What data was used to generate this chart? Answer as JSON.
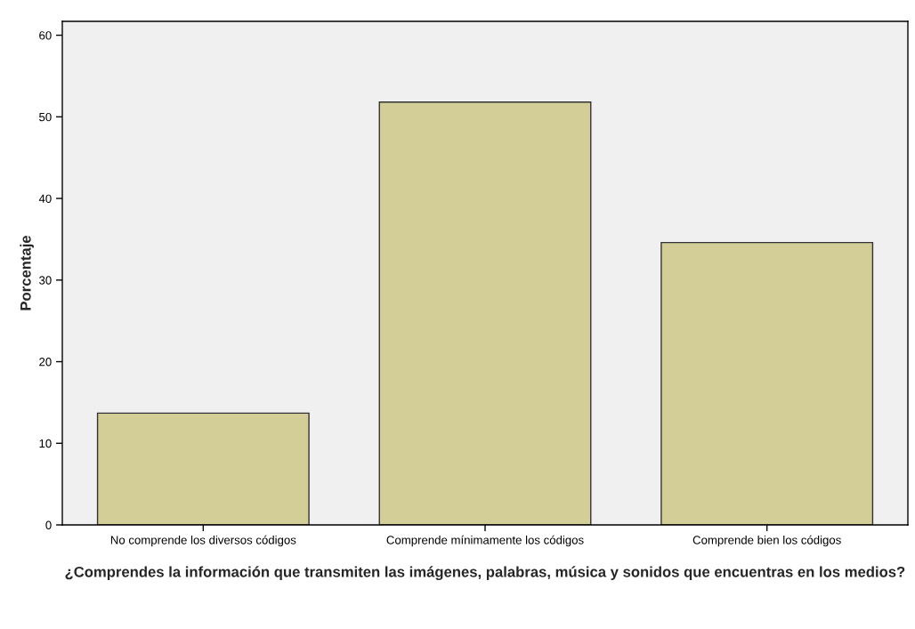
{
  "chart_data": {
    "type": "bar",
    "xlabel": "¿Comprendes la información que transmiten las imágenes, palabras, música y sonidos que encuentras en los medios?",
    "ylabel": "Porcentaje",
    "categories": [
      "No comprende los diversos códigos",
      "Comprende mínimamente los códigos",
      "Comprende bien los códigos"
    ],
    "values": [
      13.7,
      51.8,
      34.6
    ],
    "color": "#d3ce97",
    "ylim": [
      0,
      61.7
    ],
    "yticks": [
      0,
      10,
      20,
      30,
      40,
      50,
      60
    ],
    "grid": false
  }
}
